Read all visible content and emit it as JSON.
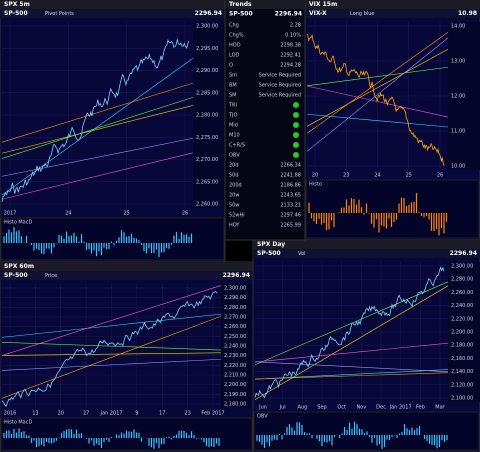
{
  "panels": [
    {
      "title": "SPX 5m",
      "symbol": "SP-500",
      "price": "2296.94",
      "legend": "Pivot Points",
      "axis_labels": [
        "2,300.00",
        "2,295.00",
        "2,290.00",
        "2,285.00",
        "2,280.00",
        "2,275.00",
        "2,270.00",
        "2,265.00",
        "2,260.00"
      ],
      "x_labels": [
        "2017",
        "24",
        "25",
        "26"
      ],
      "indicator": "Histo MacD"
    },
    {
      "title": "VIX 15m",
      "symbol": "VIX-X",
      "price": "10.98",
      "legend": "Long blue",
      "axis_labels": [
        "14.00",
        "13.00",
        "12.00",
        "11.00",
        "10.00"
      ],
      "x_labels": [
        "20",
        "23",
        "24",
        "25",
        "26"
      ],
      "indicator": "Histo"
    },
    {
      "title": "SPX 60m",
      "symbol": "SP-500",
      "price": "2296.94",
      "legend": "Price",
      "axis_labels": [
        "2,300.00",
        "2,290.00",
        "2,280.00",
        "2,270.00",
        "2,260.00",
        "2,250.00",
        "2,240.00",
        "2,230.00",
        "2,220.00",
        "2,210.00",
        "2,200.00",
        "2,190.00",
        "2,180.00"
      ],
      "x_labels": [
        "2016",
        "13",
        "20",
        "27",
        "Jan 2017",
        "9",
        "17",
        "23",
        "Feb 2017"
      ],
      "indicator": "Histo MacD"
    },
    {
      "title": "SPX Day",
      "symbol": "SP-500",
      "price": "2296.94",
      "legend": "Vol",
      "axis_labels": [
        "2,300.00",
        "2,280.00",
        "2,260.00",
        "2,240.00",
        "2,220.00",
        "2,200.00",
        "2,180.00",
        "2,160.00",
        "2,140.00",
        "2,120.00",
        "2,100.00"
      ],
      "x_labels": [
        "Jun",
        "Jul",
        "Aug",
        "Sep",
        "Oct",
        "Nov",
        "Dec",
        "Jan 2017",
        "Feb",
        "Mar"
      ],
      "indicator": "OBV"
    }
  ],
  "quote": {
    "title": "Trends",
    "symbol": "SP-500",
    "last": "2296.94",
    "rows": [
      {
        "label": "Chg",
        "value": "2.28"
      },
      {
        "label": "Chg%",
        "value": "0.10%"
      },
      {
        "label": "HOD",
        "value": "2298.38"
      },
      {
        "label": "LOD",
        "value": "2292.41"
      },
      {
        "label": "O",
        "value": "2294.28"
      },
      {
        "label": "Sm",
        "value": "Service Required"
      },
      {
        "label": "BM",
        "value": "Service Required"
      },
      {
        "label": "SM",
        "value": "Service Required"
      },
      {
        "label": "TRI",
        "value": ""
      },
      {
        "label": "TJO",
        "value": ""
      },
      {
        "label": "Mid",
        "value": ""
      },
      {
        "label": "M10",
        "value": ""
      },
      {
        "label": "C+R/S",
        "value": ""
      },
      {
        "label": "OBV",
        "value": ""
      },
      {
        "label": "20d",
        "value": "2266.34"
      },
      {
        "label": "50d",
        "value": "2241.88"
      },
      {
        "label": "200d",
        "value": "2186.86"
      },
      {
        "label": "20w",
        "value": "2243.65"
      },
      {
        "label": "50w",
        "value": "2133.21"
      },
      {
        "label": "52wHi",
        "value": "2297.46"
      },
      {
        "label": "HOY",
        "value": "2265.99"
      }
    ]
  }
}
